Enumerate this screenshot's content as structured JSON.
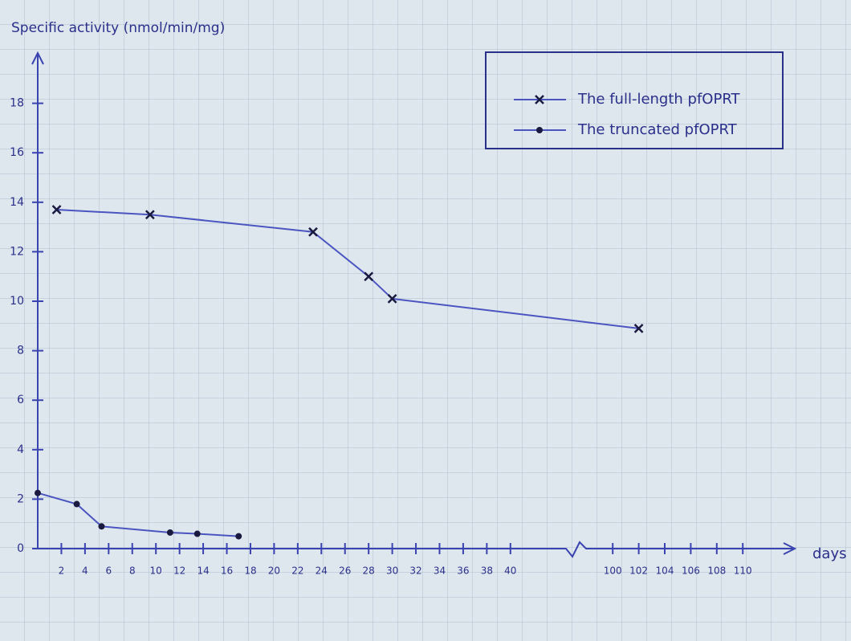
{
  "chart_data": {
    "type": "line",
    "y_label": "Specific activity (nmol/min/mg)",
    "x_label": "days",
    "xlim": [
      0,
      111
    ],
    "x_break": [
      41,
      99
    ],
    "xticks": [
      2,
      4,
      6,
      8,
      10,
      12,
      14,
      16,
      18,
      20,
      22,
      24,
      26,
      28,
      30,
      32,
      34,
      36,
      38,
      40,
      100,
      102,
      104,
      106,
      108,
      110
    ],
    "ylim": [
      0,
      20
    ],
    "yticks": [
      0,
      2,
      4,
      6,
      8,
      10,
      12,
      14,
      16,
      18
    ],
    "legend": "upper right",
    "series": [
      {
        "name": "The full-length pfOPRT",
        "color": "#4a55c0",
        "marker": "x",
        "x": [
          1.6,
          9.5,
          23.3,
          28,
          30,
          102
        ],
        "values": [
          13.7,
          13.5,
          12.8,
          11.0,
          10.1,
          8.9
        ]
      },
      {
        "name": "The truncated pfOPRT",
        "color": "#4a55c0",
        "marker": "dot",
        "x": [
          0,
          3.3,
          5.4,
          11.2,
          13.5,
          17
        ],
        "values": [
          2.25,
          1.8,
          0.9,
          0.65,
          0.6,
          0.5
        ]
      }
    ]
  }
}
